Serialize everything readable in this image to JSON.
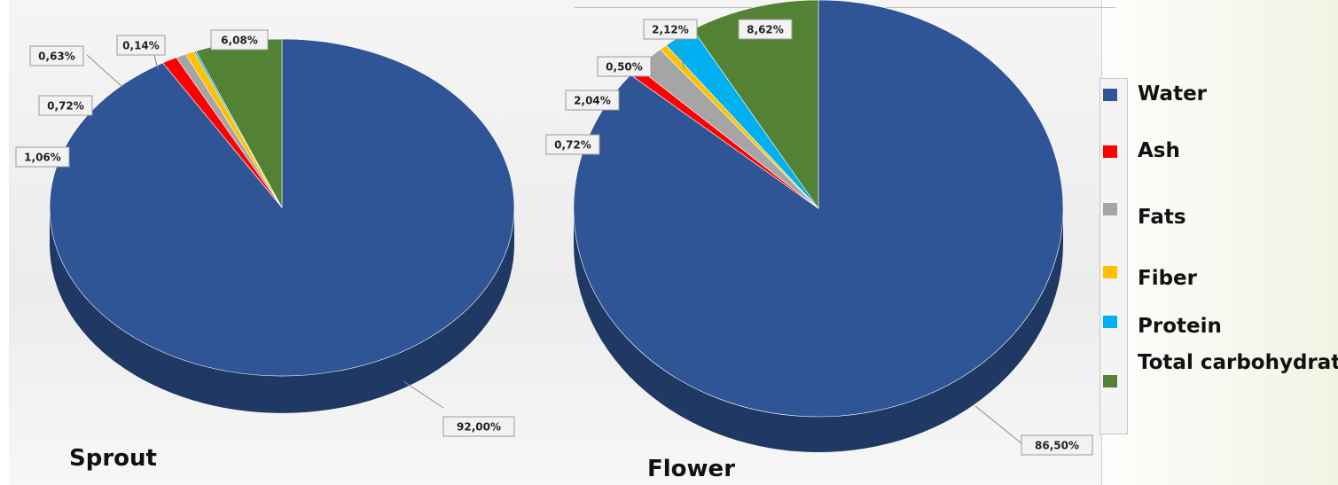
{
  "chart_data": [
    {
      "type": "pie",
      "title": "Sprout",
      "categories": [
        "Water",
        "Ash",
        "Fats",
        "Fiber",
        "Protein",
        "Total carbohydrates"
      ],
      "values": [
        92.0,
        1.06,
        0.72,
        0.63,
        0.14,
        6.08
      ],
      "labels": [
        "92,00%",
        "1,06%",
        "0,72%",
        "0,63%",
        "0,14%",
        "6,08%"
      ]
    },
    {
      "type": "pie",
      "title": "Flower",
      "categories": [
        "Water",
        "Ash",
        "Fats",
        "Fiber",
        "Protein",
        "Total carbohydrates"
      ],
      "values": [
        86.5,
        0.72,
        2.04,
        0.5,
        2.12,
        8.62
      ],
      "labels": [
        "86,50%",
        "0,72%",
        "2,04%",
        "0,50%",
        "2,12%",
        "8,62%"
      ]
    }
  ],
  "legend": {
    "items": [
      {
        "label": "Water",
        "color": "#2f5597"
      },
      {
        "label": "Ash",
        "color": "#ff0000"
      },
      {
        "label": "Fats",
        "color": "#a5a5a5"
      },
      {
        "label": "Fiber",
        "color": "#ffc000"
      },
      {
        "label": "Protein",
        "color": "#00b0f0"
      },
      {
        "label": "Total carbohydrates",
        "color": "#548235"
      }
    ]
  }
}
